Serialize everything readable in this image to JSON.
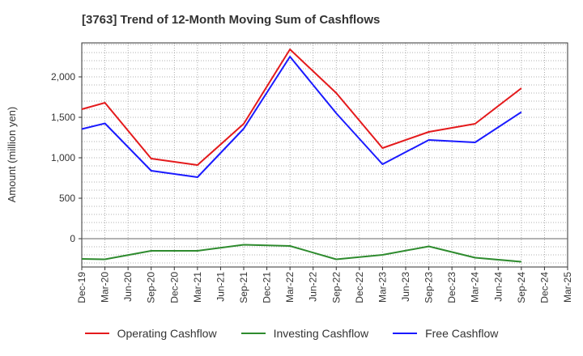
{
  "title": "[3763]  Trend of 12-Month Moving Sum of Cashflows",
  "chart_data": {
    "type": "line",
    "title": "[3763]  Trend of 12-Month Moving Sum of Cashflows",
    "xlabel": "",
    "ylabel": "Amount (million yen)",
    "categories": [
      "Dec-19",
      "Mar-20",
      "Jun-20",
      "Sep-20",
      "Dec-20",
      "Mar-21",
      "Jun-21",
      "Sep-21",
      "Dec-21",
      "Mar-22",
      "Jun-22",
      "Sep-22",
      "Dec-22",
      "Mar-23",
      "Jun-23",
      "Sep-23",
      "Dec-23",
      "Mar-24",
      "Jun-24",
      "Sep-24",
      "Dec-24",
      "Mar-25"
    ],
    "yticks": [
      0,
      500,
      1000,
      1500,
      2000
    ],
    "ytick_labels": [
      "0",
      "500",
      "1,000",
      "1,500",
      "2,000"
    ],
    "ylim": [
      -350,
      2420
    ],
    "grid": true,
    "legend_position": "bottom",
    "series": [
      {
        "name": "Operating Cashflow",
        "color": "#e41a1c",
        "values": [
          1600,
          1680,
          null,
          990,
          null,
          910,
          null,
          1420,
          null,
          2340,
          null,
          1800,
          null,
          1120,
          null,
          1320,
          null,
          1420,
          null,
          1860,
          null,
          null
        ]
      },
      {
        "name": "Investing Cashflow",
        "color": "#2e8b2e",
        "values": [
          -250,
          -255,
          null,
          -150,
          null,
          -150,
          null,
          -75,
          null,
          -90,
          null,
          -255,
          null,
          -200,
          null,
          -95,
          null,
          -235,
          null,
          -285,
          null,
          null
        ]
      },
      {
        "name": "Free Cashflow",
        "color": "#1a1aff",
        "values": [
          1355,
          1425,
          null,
          840,
          null,
          760,
          null,
          1360,
          null,
          2250,
          null,
          1550,
          null,
          920,
          null,
          1220,
          null,
          1190,
          null,
          1565,
          null,
          null
        ]
      }
    ]
  }
}
